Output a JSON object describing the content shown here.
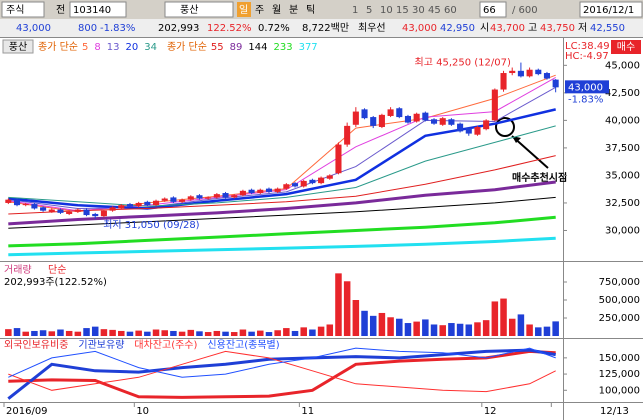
{
  "toolbar": {
    "row1": [
      "주식",
      "전",
      "103140",
      "풍산",
      "일",
      "주",
      "월",
      "분",
      "틱",
      "1",
      "5",
      "10",
      "15",
      "30",
      "45",
      "60",
      "66",
      "/ 600",
      "2016/12/1"
    ],
    "row2": [
      "43,000",
      "800",
      "-1.83%",
      "202,993",
      "122.52%",
      "0.72%",
      "8,722백만",
      "최우선",
      "43,000",
      "42,950",
      "시",
      "43,700",
      "고",
      "43,750",
      "저",
      "42,550",
      "매수"
    ]
  },
  "chart_data": [
    {
      "type": "candlestick",
      "label": "풍산",
      "open": [
        32500,
        32800,
        32300,
        32400,
        32100,
        31700,
        31900,
        31500,
        31700,
        31900,
        31500,
        31300,
        31800,
        32000,
        32400,
        32200,
        32600,
        32300,
        32700,
        33000,
        32600,
        32800,
        33200,
        32900,
        33000,
        33400,
        33000,
        33200,
        33700,
        33400,
        33800,
        33500,
        33800,
        34300,
        34000,
        34600,
        34300,
        34700,
        35200,
        37800,
        39600,
        41000,
        40300,
        39400,
        40400,
        41100,
        40400,
        39900,
        40700,
        40100,
        39600,
        40100,
        39700,
        39300,
        38700,
        39200,
        40000,
        42800,
        44300,
        44500,
        44000,
        44600,
        44300,
        43700
      ],
      "high": [
        32900,
        32900,
        32500,
        32500,
        32200,
        32000,
        32000,
        31800,
        32000,
        32000,
        31600,
        31900,
        32200,
        32400,
        32500,
        32600,
        32700,
        32800,
        33000,
        33100,
        32900,
        33200,
        33300,
        33100,
        33400,
        33500,
        33300,
        33700,
        33800,
        33800,
        33900,
        33900,
        34300,
        34400,
        34600,
        34700,
        34900,
        35100,
        38000,
        39800,
        41200,
        41100,
        40400,
        40600,
        41200,
        41200,
        40500,
        40700,
        40800,
        40200,
        40300,
        40200,
        39800,
        39400,
        39500,
        40100,
        42900,
        44500,
        44800,
        45250,
        44800,
        44700,
        44400,
        43750
      ],
      "low": [
        32400,
        32200,
        32200,
        31900,
        31700,
        31600,
        31500,
        31400,
        31600,
        31300,
        31050,
        31200,
        31700,
        31900,
        32100,
        32100,
        32200,
        32200,
        32600,
        32500,
        32500,
        32700,
        32800,
        32800,
        32900,
        32900,
        32900,
        33100,
        33300,
        33300,
        33400,
        33400,
        33700,
        33900,
        33900,
        34200,
        34200,
        34600,
        35100,
        37600,
        39400,
        40100,
        39300,
        39300,
        40300,
        40200,
        39700,
        39800,
        39900,
        39600,
        39500,
        39500,
        38900,
        38600,
        38600,
        39100,
        39900,
        42600,
        44100,
        43900,
        43900,
        44100,
        43700,
        42550
      ],
      "close": [
        32800,
        32300,
        32400,
        32000,
        31800,
        31900,
        31600,
        31700,
        31900,
        31400,
        31300,
        31800,
        32100,
        32300,
        32200,
        32500,
        32300,
        32700,
        32900,
        32600,
        32800,
        33100,
        32900,
        33000,
        33300,
        33000,
        33200,
        33600,
        33400,
        33700,
        33500,
        33800,
        34200,
        34000,
        34500,
        34300,
        34800,
        35000,
        37800,
        39500,
        40800,
        40200,
        39500,
        40500,
        41000,
        40300,
        39800,
        40600,
        40000,
        39700,
        40200,
        39600,
        39000,
        38800,
        39400,
        40000,
        42800,
        44300,
        44500,
        44000,
        44600,
        44200,
        43800,
        43000
      ],
      "up_color": "#e8242a",
      "down_color": "#1f3fd6",
      "ylim": [
        27500,
        47300
      ],
      "yticks": [
        {
          "value": 45000,
          "label": "45,000"
        },
        {
          "value": 42500,
          "label": "42,500"
        },
        {
          "value": 40000,
          "label": "40,000"
        },
        {
          "value": 37500,
          "label": "37,500"
        },
        {
          "value": 35000,
          "label": "35,000"
        },
        {
          "value": 32500,
          "label": "32,500"
        },
        {
          "value": 30000,
          "label": "30,000"
        }
      ],
      "ma_groups": [
        {
          "label": "종가 단순",
          "label_color": "#e06000",
          "series": [
            {
              "name": "5",
              "color": "#ff6a3d",
              "width": 1,
              "x": [
                0,
                8,
                16,
                24,
                32,
                40,
                48,
                56,
                63
              ],
              "values": [
                32600,
                31700,
                32500,
                33100,
                33800,
                39300,
                40200,
                42000,
                44100
              ]
            },
            {
              "name": "8",
              "color": "#e040e0",
              "width": 1,
              "x": [
                0,
                8,
                16,
                24,
                32,
                40,
                48,
                56,
                63
              ],
              "values": [
                32700,
                31800,
                32300,
                33000,
                33700,
                37600,
                40300,
                40800,
                43900
              ]
            },
            {
              "name": "13",
              "color": "#6a5acd",
              "width": 1,
              "x": [
                0,
                8,
                16,
                24,
                32,
                40,
                48,
                56,
                63
              ],
              "values": [
                32800,
                32000,
                32100,
                32900,
                33500,
                35800,
                40000,
                39900,
                43000
              ]
            },
            {
              "name": "20",
              "color": "#1030e0",
              "width": 2.5,
              "x": [
                0,
                8,
                16,
                24,
                32,
                40,
                48,
                56,
                63
              ],
              "values": [
                32900,
                32300,
                32000,
                32700,
                33300,
                34600,
                38600,
                39700,
                41000
              ]
            },
            {
              "name": "34",
              "color": "#2a9a8a",
              "width": 1,
              "x": [
                0,
                8,
                16,
                24,
                32,
                40,
                48,
                56,
                63
              ],
              "values": [
                33000,
                32600,
                32200,
                32500,
                33000,
                33900,
                36300,
                38000,
                39500
              ]
            }
          ]
        },
        {
          "label": "종가 단순",
          "label_color": "#e06000",
          "series": [
            {
              "name": "55",
              "color": "#e02020",
              "width": 1,
              "x": [
                0,
                8,
                16,
                24,
                32,
                40,
                48,
                56,
                63
              ],
              "values": [
                31500,
                31800,
                32000,
                32300,
                32600,
                33100,
                34200,
                35500,
                36800
              ]
            },
            {
              "name": "89",
              "color": "#7a2a9a",
              "width": 3,
              "x": [
                0,
                8,
                16,
                24,
                32,
                40,
                48,
                56,
                63
              ],
              "values": [
                30600,
                31000,
                31300,
                31600,
                32000,
                32500,
                33200,
                33700,
                34400
              ]
            },
            {
              "name": "144",
              "color": "#000000",
              "width": 1,
              "x": [
                0,
                8,
                16,
                24,
                32,
                40,
                48,
                56,
                63
              ],
              "values": [
                30200,
                30500,
                30800,
                31100,
                31400,
                31700,
                32100,
                32500,
                33000
              ]
            },
            {
              "name": "233",
              "color": "#22dd22",
              "width": 3,
              "x": [
                0,
                8,
                16,
                24,
                32,
                40,
                48,
                56,
                63
              ],
              "values": [
                28600,
                28800,
                29100,
                29400,
                29700,
                30000,
                30300,
                30700,
                31200
              ]
            },
            {
              "name": "377",
              "color": "#22e0f0",
              "width": 3,
              "x": [
                0,
                8,
                16,
                24,
                32,
                40,
                48,
                56,
                63
              ],
              "values": [
                27800,
                27950,
                28100,
                28250,
                28400,
                28550,
                28750,
                29000,
                29300
              ]
            }
          ]
        }
      ],
      "annotations": [
        {
          "text": "최고 45,250 (12/07)",
          "x": 59,
          "y": 45250,
          "color": "#e8242a"
        },
        {
          "text": "최저 31,050 (09/28)",
          "x": 10,
          "y": 31050,
          "color": "#1f3fd6"
        }
      ],
      "signal_text": "매수추천시점",
      "lc": "LC:38.49",
      "hc": "HC:-4.97",
      "last": {
        "value": 43000,
        "label": "43,000"
      },
      "last_change": "-1.83%"
    },
    {
      "type": "bar",
      "title": "거래량",
      "method": "단순",
      "info": "202,993주(122.52%)",
      "values": [
        95000,
        110000,
        60000,
        70000,
        80000,
        65000,
        90000,
        70000,
        60000,
        110000,
        130000,
        95000,
        85000,
        70000,
        60000,
        75000,
        60000,
        90000,
        80000,
        70000,
        60000,
        85000,
        65000,
        55000,
        70000,
        60000,
        55000,
        90000,
        60000,
        75000,
        55000,
        80000,
        110000,
        70000,
        120000,
        90000,
        130000,
        160000,
        870000,
        760000,
        500000,
        350000,
        280000,
        320000,
        260000,
        240000,
        180000,
        200000,
        230000,
        160000,
        150000,
        180000,
        170000,
        160000,
        190000,
        220000,
        480000,
        520000,
        240000,
        300000,
        160000,
        120000,
        130000,
        202993
      ],
      "ylim": [
        0,
        1000000
      ],
      "yticks": [
        {
          "value": 750000,
          "label": "750,000"
        },
        {
          "value": 500000,
          "label": "500,000"
        },
        {
          "value": 250000,
          "label": "250,000"
        }
      ]
    },
    {
      "type": "line",
      "x": [
        0,
        5,
        10,
        15,
        20,
        25,
        30,
        35,
        40,
        45,
        50,
        55,
        60,
        63
      ],
      "series": [
        {
          "name": "외국인보유비중",
          "color": "#e8242a",
          "width": 3,
          "values": [
            114000,
            116000,
            115000,
            90000,
            89000,
            90000,
            91000,
            100000,
            140000,
            145000,
            148000,
            150000,
            160000,
            158000
          ]
        },
        {
          "name": "기관보유량",
          "color": "#1f3fd6",
          "width": 3,
          "values": [
            87000,
            140000,
            130000,
            128000,
            135000,
            140000,
            148000,
            150000,
            152000,
            150000,
            155000,
            160000,
            162000,
            155000
          ]
        },
        {
          "name": "대차잔고(주수)",
          "color": "#ff3030",
          "width": 1,
          "values": [
            125000,
            100000,
            110000,
            120000,
            140000,
            160000,
            150000,
            130000,
            110000,
            105000,
            100000,
            98000,
            110000,
            130000
          ]
        },
        {
          "name": "신용잔고(종목별)",
          "color": "#2050ff",
          "width": 1,
          "values": [
            120000,
            150000,
            160000,
            135000,
            120000,
            125000,
            140000,
            150000,
            165000,
            160000,
            158000,
            150000,
            165000,
            150000
          ]
        }
      ],
      "ylim": [
        85000,
        176000
      ],
      "yticks": [
        {
          "value": 150000,
          "label": "150,000"
        },
        {
          "value": 125000,
          "label": "125,000"
        },
        {
          "value": 100000,
          "label": "100,000"
        }
      ],
      "xticks": [
        {
          "value": 0,
          "label": "2016/09"
        },
        {
          "value": 15,
          "label": "10"
        },
        {
          "value": 34,
          "label": "11"
        },
        {
          "value": 55,
          "label": "12"
        },
        {
          "value": 63,
          "label": "12/13"
        }
      ]
    }
  ]
}
